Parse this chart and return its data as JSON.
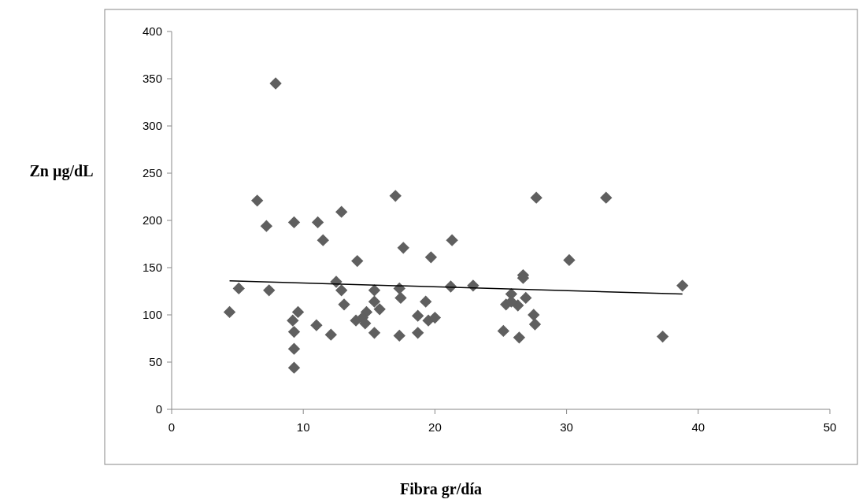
{
  "chart_data": {
    "type": "scatter",
    "xlabel": "Fibra gr/día",
    "ylabel": "Zn µg/dL",
    "xlim": [
      0,
      50
    ],
    "ylim": [
      0,
      400
    ],
    "xticks": [
      0,
      10,
      20,
      30,
      40,
      50
    ],
    "yticks": [
      0,
      50,
      100,
      150,
      200,
      250,
      300,
      350,
      400
    ],
    "grid": false,
    "series": [
      {
        "color": "#5f5f5f",
        "marker": "diamond",
        "x": [
          4.4,
          5.1,
          6.5,
          7.2,
          7.4,
          7.9,
          9.3,
          11.1,
          12.9,
          11.5,
          17.0,
          17.6,
          19.7,
          14.1,
          12.5,
          12.9,
          13.1,
          15.4,
          15.4,
          15.8,
          14.8,
          14.5,
          14.0,
          14.7,
          17.3,
          17.4,
          19.3,
          18.7,
          19.5,
          20.0,
          9.6,
          9.2,
          9.3,
          9.3,
          9.3,
          11.0,
          12.1,
          15.4,
          17.3,
          18.7,
          27.7,
          33.0,
          21.3,
          30.2,
          26.7,
          26.7,
          21.2,
          22.9,
          25.8,
          26.9,
          25.4,
          26.3,
          25.8,
          27.5,
          27.6,
          25.2,
          26.4,
          37.3,
          38.8
        ],
        "values": [
          103,
          128,
          221,
          194,
          126,
          345,
          198,
          198,
          209,
          179,
          226,
          171,
          161,
          157,
          135,
          126,
          111,
          126,
          114,
          106,
          103,
          97,
          94,
          91,
          128,
          118,
          114,
          99,
          94,
          97,
          103,
          94,
          82,
          64,
          44,
          89,
          79,
          81,
          78,
          81,
          224,
          224,
          179,
          158,
          142,
          139,
          130,
          131,
          122,
          118,
          111,
          110,
          114,
          100,
          90,
          83,
          76,
          77,
          131
        ]
      },
      {
        "type": "line",
        "color": "#000000",
        "marker": "none",
        "x": [
          4.4,
          38.8
        ],
        "values": [
          136,
          122
        ]
      }
    ]
  }
}
